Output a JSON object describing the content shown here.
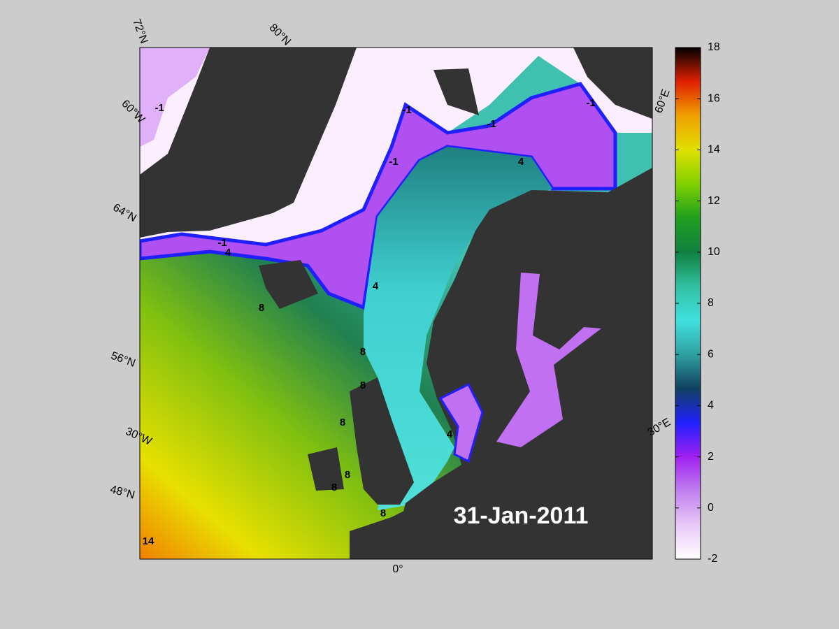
{
  "map": {
    "date": "31-Jan-2011",
    "graticule_labels": [
      "72°N",
      "80°N",
      "60°W",
      "64°N",
      "56°N",
      "30°W",
      "48°N",
      "0°",
      "60°E",
      "30°E"
    ],
    "contour_labels": [
      "-1",
      "-1",
      "-1",
      "-1",
      "-1",
      "-1",
      "4",
      "4",
      "4",
      "4",
      "8",
      "8",
      "8",
      "8",
      "8",
      "8",
      "8",
      "14"
    ]
  },
  "colorbar": {
    "lim": [
      -2,
      18
    ],
    "ticks": [
      -2,
      0,
      2,
      4,
      6,
      8,
      10,
      12,
      14,
      16,
      18
    ],
    "colors": [
      "#ffffff",
      "#e8c8f8",
      "#c080f0",
      "#a020f0",
      "#2020ff",
      "#104060",
      "#30a0a0",
      "#40e0e0",
      "#30c0a0",
      "#108040",
      "#20a020",
      "#80d000",
      "#e0e000",
      "#f0a000",
      "#e02000",
      "#000000"
    ]
  }
}
